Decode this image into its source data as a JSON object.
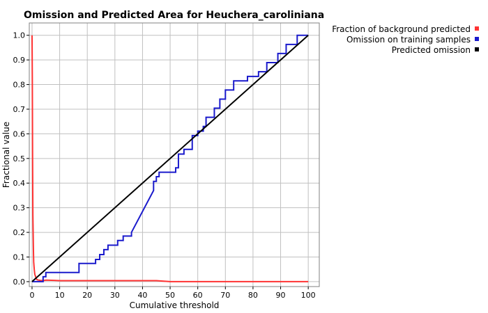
{
  "chart_data": {
    "type": "line",
    "title": "Omission and Predicted Area for Heuchera_caroliniana",
    "xlabel": "Cumulative threshold",
    "ylabel": "Fractional value",
    "xlim": [
      -1,
      104
    ],
    "ylim": [
      -0.02,
      1.05
    ],
    "x_ticks": [
      0,
      10,
      20,
      30,
      40,
      50,
      60,
      70,
      80,
      90,
      100
    ],
    "y_ticks": [
      0.0,
      0.1,
      0.2,
      0.3,
      0.4,
      0.5,
      0.6,
      0.7,
      0.8,
      0.9,
      1.0
    ],
    "x_tick_labels": [
      "0",
      "10",
      "20",
      "30",
      "40",
      "50",
      "60",
      "70",
      "80",
      "90",
      "100"
    ],
    "y_tick_labels": [
      "0.0",
      "0.1",
      "0.2",
      "0.3",
      "0.4",
      "0.5",
      "0.6",
      "0.7",
      "0.8",
      "0.9",
      "1.0"
    ],
    "grid": true,
    "legend_position": "top-right, outside plot",
    "series": [
      {
        "name": "Fraction of background predicted",
        "color": "#ff3333",
        "x": [
          0,
          0.1,
          0.2,
          0.3,
          0.4,
          0.5,
          0.6,
          0.8,
          1.0,
          1.3,
          1.6,
          2.0,
          3,
          4,
          5,
          8,
          10,
          20,
          30,
          40,
          45,
          50,
          60,
          70,
          80,
          90,
          100
        ],
        "y": [
          1.0,
          0.82,
          0.5,
          0.27,
          0.2,
          0.13,
          0.08,
          0.05,
          0.03,
          0.02,
          0.01,
          0.007,
          0.005,
          0.004,
          0.006,
          0.005,
          0.004,
          0.004,
          0.004,
          0.004,
          0.004,
          0.0,
          0.0,
          0.0,
          0.0,
          0.0,
          0.0
        ]
      },
      {
        "name": "Omission on training samples",
        "color": "#1a1acc",
        "x": [
          0,
          4,
          4,
          5,
          5,
          17,
          17,
          23,
          23,
          24.5,
          24.5,
          26,
          26,
          27.5,
          27.5,
          31,
          31,
          33,
          33,
          36,
          36,
          44,
          44,
          45,
          45,
          46,
          46,
          52,
          52,
          53,
          53,
          55,
          55,
          58,
          58,
          60,
          60,
          62,
          62,
          63,
          63,
          66,
          66,
          68,
          68,
          70,
          70,
          73,
          73,
          78,
          78,
          82,
          82,
          85,
          85,
          89,
          89,
          92,
          92,
          96,
          96,
          100
        ],
        "y": [
          0,
          0,
          0.02,
          0.02,
          0.037,
          0.037,
          0.074,
          0.074,
          0.09,
          0.09,
          0.11,
          0.11,
          0.13,
          0.13,
          0.148,
          0.148,
          0.167,
          0.167,
          0.185,
          0.185,
          0.2,
          0.37,
          0.407,
          0.407,
          0.426,
          0.426,
          0.444,
          0.444,
          0.462,
          0.462,
          0.518,
          0.518,
          0.537,
          0.537,
          0.593,
          0.593,
          0.611,
          0.611,
          0.63,
          0.63,
          0.667,
          0.667,
          0.704,
          0.704,
          0.741,
          0.741,
          0.778,
          0.778,
          0.815,
          0.815,
          0.833,
          0.833,
          0.852,
          0.852,
          0.889,
          0.889,
          0.926,
          0.926,
          0.963,
          0.963,
          1.0,
          1.0
        ]
      },
      {
        "name": "Predicted omission",
        "color": "#000000",
        "x": [
          0,
          100
        ],
        "y": [
          0,
          1.0
        ]
      }
    ]
  }
}
